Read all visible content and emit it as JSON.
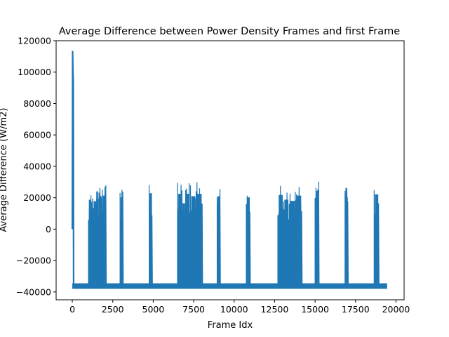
{
  "chart_data": {
    "type": "line",
    "title": "Average Difference between Power Density Frames and first Frame",
    "xlabel": "Frame Idx",
    "ylabel": "Average Difference (W/m2)",
    "xlim": [
      -1000,
      20500
    ],
    "ylim": [
      -45000,
      120000
    ],
    "x_ticks": [
      0,
      2500,
      5000,
      7500,
      10000,
      12500,
      15000,
      17500,
      20000
    ],
    "x_tick_labels": [
      "0",
      "2500",
      "5000",
      "7500",
      "10000",
      "12500",
      "15000",
      "17500",
      "20000"
    ],
    "y_ticks": [
      -40000,
      -20000,
      0,
      20000,
      40000,
      60000,
      80000,
      100000,
      120000
    ],
    "y_tick_labels": [
      "−40000",
      "−20000",
      "0",
      "20000",
      "40000",
      "60000",
      "80000",
      "100000",
      "120000"
    ],
    "grid": false,
    "legend": "none",
    "series": [
      {
        "color": "#1f77b4",
        "baseline_band": [
          -38000,
          -34500
        ],
        "x_range": [
          0,
          19450
        ],
        "initial_spike": {
          "x": [
            0,
            20,
            40,
            60,
            80
          ],
          "y": [
            0,
            113500,
            100000,
            95000,
            -36000
          ]
        },
        "bursts": [
          {
            "x_start": 1000,
            "x_end": 1150,
            "low": -34000,
            "high": 25000
          },
          {
            "x_start": 1150,
            "x_end": 1300,
            "low": -32000,
            "high": 23000
          },
          {
            "x_start": 1300,
            "x_end": 1450,
            "low": -30000,
            "high": 24000
          },
          {
            "x_start": 1450,
            "x_end": 1650,
            "low": -33000,
            "high": 26000
          },
          {
            "x_start": 1650,
            "x_end": 1850,
            "low": -34000,
            "high": 27000
          },
          {
            "x_start": 1850,
            "x_end": 2100,
            "low": -32000,
            "high": 28500
          },
          {
            "x_start": 2950,
            "x_end": 3150,
            "low": -35000,
            "high": 27000
          },
          {
            "x_start": 4750,
            "x_end": 4950,
            "low": -35000,
            "high": 30500
          },
          {
            "x_start": 6500,
            "x_end": 6800,
            "low": -35000,
            "high": 30000
          },
          {
            "x_start": 6800,
            "x_end": 7000,
            "low": -34000,
            "high": 22000
          },
          {
            "x_start": 7000,
            "x_end": 7300,
            "low": -35000,
            "high": 30000
          },
          {
            "x_start": 7300,
            "x_end": 7650,
            "low": -35000,
            "high": 28000
          },
          {
            "x_start": 7650,
            "x_end": 8050,
            "low": -35000,
            "high": 30000
          },
          {
            "x_start": 8950,
            "x_end": 9150,
            "low": -35000,
            "high": 28000
          },
          {
            "x_start": 10750,
            "x_end": 11000,
            "low": -35000,
            "high": 27000
          },
          {
            "x_start": 12700,
            "x_end": 13050,
            "low": -35000,
            "high": 29000
          },
          {
            "x_start": 13050,
            "x_end": 13400,
            "low": -34000,
            "high": 25000
          },
          {
            "x_start": 13400,
            "x_end": 13800,
            "low": -35000,
            "high": 24000
          },
          {
            "x_start": 13800,
            "x_end": 14200,
            "low": -35000,
            "high": 28500
          },
          {
            "x_start": 15000,
            "x_end": 15250,
            "low": -35000,
            "high": 32500
          },
          {
            "x_start": 16850,
            "x_end": 17050,
            "low": -35000,
            "high": 27000
          },
          {
            "x_start": 18650,
            "x_end": 18950,
            "low": -35000,
            "high": 29500
          }
        ]
      }
    ]
  }
}
